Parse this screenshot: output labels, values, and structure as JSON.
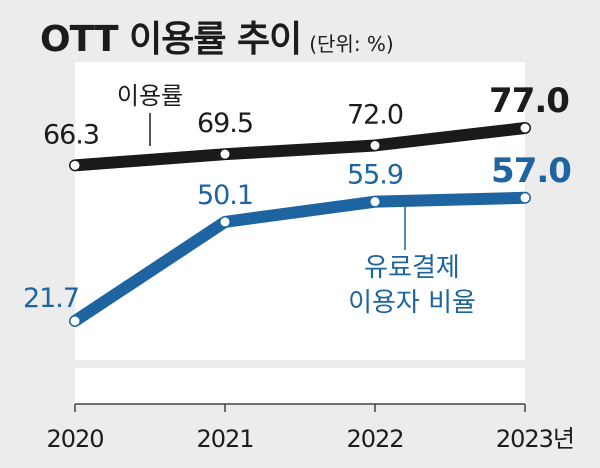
{
  "title": "OTT 이용률 추이",
  "unit": "(단위: %)",
  "chart_data": {
    "type": "line",
    "title": "OTT 이용률 추이",
    "unit": "(단위: %)",
    "categories": [
      "2020",
      "2021",
      "2022",
      "2023년"
    ],
    "series": [
      {
        "name": "이용률",
        "values": [
          66.3,
          69.5,
          72.0,
          77.0
        ],
        "labels": [
          "66.3",
          "69.5",
          "72.0",
          "77.0"
        ],
        "color": "#1a1a1a"
      },
      {
        "name": "유료결제 이용자 비율",
        "name_lines": [
          "유료결제",
          "이용자 비율"
        ],
        "values": [
          21.7,
          50.1,
          55.9,
          57.0
        ],
        "labels": [
          "21.7",
          "50.1",
          "55.9",
          "57.0"
        ],
        "color": "#1d64a1"
      }
    ],
    "grid": false,
    "legend": "inline labels"
  },
  "colors": {
    "background": "#ececed",
    "plot_area": "#ffffff",
    "usage_line": "#1a1a1a",
    "paid_line": "#1d64a1"
  }
}
